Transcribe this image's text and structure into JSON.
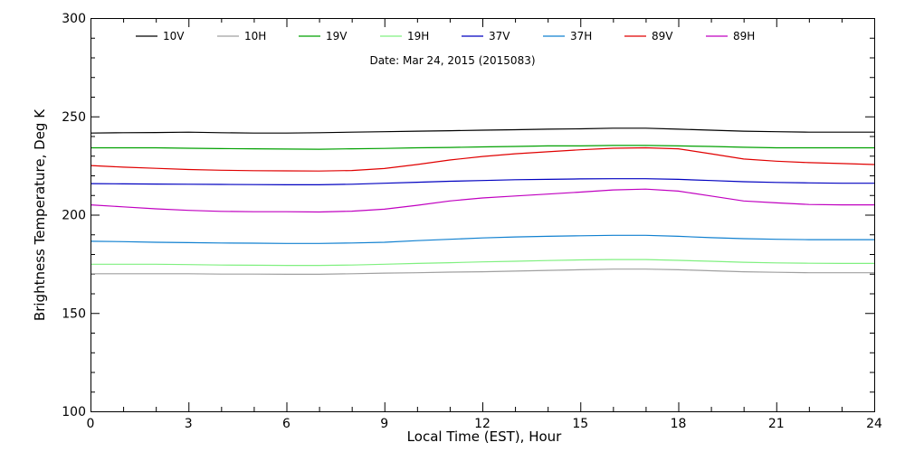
{
  "chart_data": {
    "type": "line",
    "subtitle": "Date: Mar 24, 2015 (2015083)",
    "xlabel": "Local Time (EST), Hour",
    "ylabel": "Brightness Temperature, Deg K",
    "xlim": [
      0,
      24
    ],
    "ylim": [
      100,
      300
    ],
    "xticks": [
      0,
      3,
      6,
      9,
      12,
      15,
      18,
      21,
      24
    ],
    "yticks": [
      100,
      150,
      200,
      250,
      300
    ],
    "grid": false,
    "legend_position": "top",
    "x": [
      0,
      1,
      2,
      3,
      4,
      5,
      6,
      7,
      8,
      9,
      10,
      11,
      12,
      13,
      14,
      15,
      16,
      17,
      18,
      19,
      20,
      21,
      22,
      23,
      24
    ],
    "series": [
      {
        "name": "10V",
        "color": "#000000",
        "values": [
          241.5,
          241.7,
          241.8,
          242.0,
          241.7,
          241.5,
          241.5,
          241.7,
          242.0,
          242.2,
          242.5,
          242.7,
          243.0,
          243.2,
          243.5,
          243.7,
          244.0,
          244.0,
          243.5,
          243.0,
          242.5,
          242.2,
          242.0,
          242.0,
          242.0
        ]
      },
      {
        "name": "10H",
        "color": "#a0a0a0",
        "values": [
          170.0,
          170.0,
          170.0,
          170.0,
          169.8,
          169.8,
          169.7,
          169.7,
          170.0,
          170.3,
          170.5,
          170.8,
          171.0,
          171.3,
          171.7,
          172.0,
          172.3,
          172.3,
          172.0,
          171.5,
          171.0,
          170.7,
          170.5,
          170.5,
          170.5
        ]
      },
      {
        "name": "19V",
        "color": "#00a000",
        "values": [
          234.0,
          234.0,
          234.0,
          233.8,
          233.6,
          233.5,
          233.4,
          233.3,
          233.5,
          233.7,
          234.0,
          234.2,
          234.5,
          234.7,
          235.0,
          235.0,
          235.2,
          235.2,
          235.0,
          234.7,
          234.3,
          234.0,
          234.0,
          234.0,
          234.0
        ]
      },
      {
        "name": "19H",
        "color": "#80f080",
        "values": [
          174.8,
          174.8,
          174.8,
          174.6,
          174.4,
          174.3,
          174.2,
          174.2,
          174.4,
          174.8,
          175.2,
          175.6,
          176.0,
          176.3,
          176.7,
          177.0,
          177.2,
          177.2,
          176.8,
          176.3,
          175.8,
          175.5,
          175.3,
          175.2,
          175.2
        ]
      },
      {
        "name": "37V",
        "color": "#0000c0",
        "values": [
          215.8,
          215.7,
          215.6,
          215.5,
          215.4,
          215.3,
          215.2,
          215.2,
          215.5,
          216.0,
          216.5,
          217.0,
          217.4,
          217.8,
          218.0,
          218.2,
          218.3,
          218.3,
          218.0,
          217.4,
          216.8,
          216.4,
          216.2,
          216.0,
          216.0
        ]
      },
      {
        "name": "37H",
        "color": "#1080d0",
        "values": [
          186.5,
          186.3,
          186.0,
          185.8,
          185.6,
          185.5,
          185.4,
          185.4,
          185.6,
          186.0,
          186.8,
          187.5,
          188.2,
          188.7,
          189.0,
          189.3,
          189.5,
          189.5,
          189.0,
          188.3,
          187.8,
          187.5,
          187.3,
          187.3,
          187.3
        ]
      },
      {
        "name": "89V",
        "color": "#e00000",
        "values": [
          225.0,
          224.2,
          223.6,
          223.0,
          222.6,
          222.4,
          222.3,
          222.2,
          222.5,
          223.5,
          225.5,
          227.8,
          229.6,
          231.0,
          232.0,
          233.0,
          233.8,
          234.0,
          233.5,
          231.0,
          228.3,
          227.2,
          226.5,
          226.0,
          225.5
        ]
      },
      {
        "name": "89H",
        "color": "#c000c0",
        "values": [
          205.0,
          204.0,
          203.0,
          202.2,
          201.7,
          201.5,
          201.5,
          201.4,
          201.8,
          202.8,
          204.8,
          207.0,
          208.5,
          209.5,
          210.5,
          211.5,
          212.6,
          213.0,
          212.0,
          209.5,
          207.0,
          206.0,
          205.2,
          205.0,
          205.0
        ]
      }
    ]
  }
}
